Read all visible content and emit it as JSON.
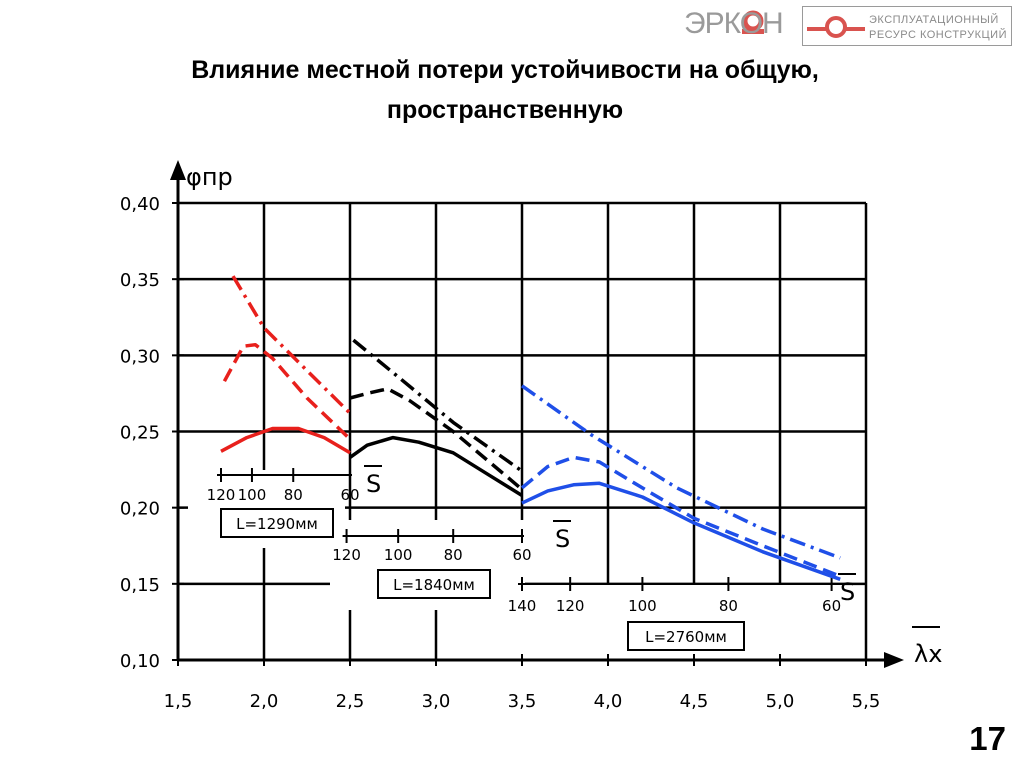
{
  "header": {
    "logo_left_text": "ЭРКОН",
    "logo_right_line1": "ЭКСПЛУАТАЦИОННЫЙ",
    "logo_right_line2": "РЕСУРС КОНСТРУКЦИЙ",
    "logo_color": "#d9534f"
  },
  "title": {
    "line1": "Влияние местной потери устойчивости на общую,",
    "line2": "пространственную"
  },
  "page_number": "17",
  "chart_data": {
    "type": "line",
    "y_label": "φпр",
    "x_label": "λx",
    "x_lim": [
      1.5,
      5.5
    ],
    "y_lim": [
      0.1,
      0.4
    ],
    "x_ticks": [
      "1,5",
      "2,0",
      "2,5",
      "3,0",
      "3,5",
      "4,0",
      "4,5",
      "5,0",
      "5,5"
    ],
    "y_ticks": [
      "0,10",
      "0,15",
      "0,20",
      "0,25",
      "0,30",
      "0,35",
      "0,40"
    ],
    "grid": true,
    "groups": [
      {
        "name": "L=1290мм",
        "color": "#e8201c",
        "secondary_axis_label": "S",
        "secondary_ticks": [
          "120",
          "100",
          "80",
          "60"
        ],
        "secondary_tick_x": [
          1.75,
          1.93,
          2.17,
          2.5
        ],
        "series": [
          {
            "style": "dashdot",
            "points": [
              [
                1.82,
                0.352
              ],
              [
                2.0,
                0.318
              ],
              [
                2.25,
                0.29
              ],
              [
                2.5,
                0.262
              ]
            ]
          },
          {
            "style": "dashed",
            "points": [
              [
                1.77,
                0.283
              ],
              [
                1.88,
                0.306
              ],
              [
                1.95,
                0.307
              ],
              [
                2.05,
                0.298
              ],
              [
                2.25,
                0.272
              ],
              [
                2.5,
                0.245
              ]
            ]
          },
          {
            "style": "solid",
            "points": [
              [
                1.75,
                0.237
              ],
              [
                1.9,
                0.246
              ],
              [
                2.05,
                0.252
              ],
              [
                2.2,
                0.252
              ],
              [
                2.35,
                0.246
              ],
              [
                2.5,
                0.236
              ]
            ]
          }
        ]
      },
      {
        "name": "L=1840мм",
        "color": "#000000",
        "secondary_axis_label": "S",
        "secondary_ticks": [
          "120",
          "100",
          "80",
          "60"
        ],
        "secondary_tick_x": [
          2.48,
          2.78,
          3.1,
          3.5
        ],
        "series": [
          {
            "style": "dashdot",
            "points": [
              [
                2.52,
                0.31
              ],
              [
                2.8,
                0.284
              ],
              [
                3.1,
                0.256
              ],
              [
                3.5,
                0.224
              ]
            ]
          },
          {
            "style": "dashed",
            "points": [
              [
                2.5,
                0.272
              ],
              [
                2.6,
                0.275
              ],
              [
                2.72,
                0.278
              ],
              [
                2.85,
                0.27
              ],
              [
                3.1,
                0.25
              ],
              [
                3.5,
                0.212
              ]
            ]
          },
          {
            "style": "solid",
            "points": [
              [
                2.5,
                0.233
              ],
              [
                2.6,
                0.241
              ],
              [
                2.75,
                0.246
              ],
              [
                2.9,
                0.243
              ],
              [
                3.1,
                0.236
              ],
              [
                3.3,
                0.222
              ],
              [
                3.5,
                0.208
              ]
            ]
          }
        ]
      },
      {
        "name": "L=2760мм",
        "color": "#1f4fe8",
        "secondary_axis_label": "S",
        "secondary_ticks": [
          "140",
          "120",
          "100",
          "80",
          "60"
        ],
        "secondary_tick_x": [
          3.5,
          3.78,
          4.2,
          4.7,
          5.3
        ],
        "series": [
          {
            "style": "dashdot",
            "points": [
              [
                3.5,
                0.28
              ],
              [
                3.9,
                0.248
              ],
              [
                4.4,
                0.213
              ],
              [
                4.9,
                0.186
              ],
              [
                5.35,
                0.167
              ]
            ]
          },
          {
            "style": "dashed",
            "points": [
              [
                3.5,
                0.213
              ],
              [
                3.65,
                0.227
              ],
              [
                3.8,
                0.233
              ],
              [
                3.95,
                0.23
              ],
              [
                4.2,
                0.213
              ],
              [
                4.5,
                0.193
              ],
              [
                4.9,
                0.175
              ],
              [
                5.35,
                0.155
              ]
            ]
          },
          {
            "style": "solid",
            "points": [
              [
                3.5,
                0.203
              ],
              [
                3.65,
                0.211
              ],
              [
                3.8,
                0.215
              ],
              [
                3.95,
                0.216
              ],
              [
                4.2,
                0.207
              ],
              [
                4.5,
                0.19
              ],
              [
                4.9,
                0.171
              ],
              [
                5.35,
                0.153
              ]
            ]
          }
        ]
      }
    ]
  }
}
